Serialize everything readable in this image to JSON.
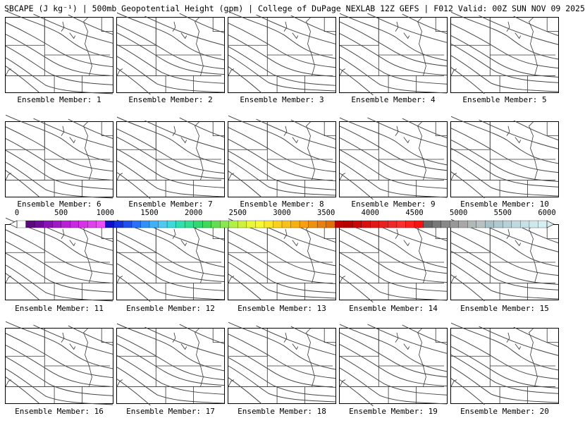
{
  "title": "SBCAPE (J kg⁻¹) | 500mb Geopotential Height (gpm) | College of DuPage NEXLAB 12Z GEFS | F012 Valid: 00Z SUN NOV 09 2025",
  "members": [
    "Ensemble Member: 1",
    "Ensemble Member: 2",
    "Ensemble Member: 3",
    "Ensemble Member: 4",
    "Ensemble Member: 5",
    "Ensemble Member: 6",
    "Ensemble Member: 7",
    "Ensemble Member: 8",
    "Ensemble Member: 9",
    "Ensemble Member: 10",
    "Ensemble Member: 11",
    "Ensemble Member: 12",
    "Ensemble Member: 13",
    "Ensemble Member: 14",
    "Ensemble Member: 15",
    "Ensemble Member: 16",
    "Ensemble Member: 17",
    "Ensemble Member: 18",
    "Ensemble Member: 19",
    "Ensemble Member: 20"
  ],
  "colorbar": {
    "ticks": [
      "0",
      "500",
      "1000",
      "1500",
      "2000",
      "2500",
      "3000",
      "3500",
      "4000",
      "4500",
      "5000",
      "5500",
      "6000"
    ],
    "min": 0,
    "max": 6000,
    "colors": [
      "#ffffff",
      "#5a0a7a",
      "#6e0a9a",
      "#8a10b8",
      "#a018c8",
      "#b820d8",
      "#c828e0",
      "#d832e8",
      "#e040f0",
      "#ee4cf8",
      "#1010c8",
      "#1830e0",
      "#2050f0",
      "#2870f8",
      "#3090f8",
      "#40b0f8",
      "#50c8f0",
      "#40d8d8",
      "#30e0b0",
      "#30e090",
      "#30d870",
      "#40d858",
      "#60e050",
      "#88e850",
      "#b0f048",
      "#d0f040",
      "#e8f838",
      "#f8f830",
      "#f8e828",
      "#f8d020",
      "#f8c018",
      "#f8b010",
      "#f8a010",
      "#f09010",
      "#e88010",
      "#e07008",
      "#c00000",
      "#b80000",
      "#c80808",
      "#d81010",
      "#e01818",
      "#e82020",
      "#f02828",
      "#f83030",
      "#fc2020",
      "#ff1010",
      "#686868",
      "#787878",
      "#888888",
      "#989898",
      "#a8a8a8",
      "#b0b8b8",
      "#b8c0c0",
      "#a8c0c8",
      "#b0c8d0",
      "#b8d0d8",
      "#c0d8e0",
      "#c8e0e8",
      "#d0e8ec",
      "#d8eef2"
    ]
  }
}
